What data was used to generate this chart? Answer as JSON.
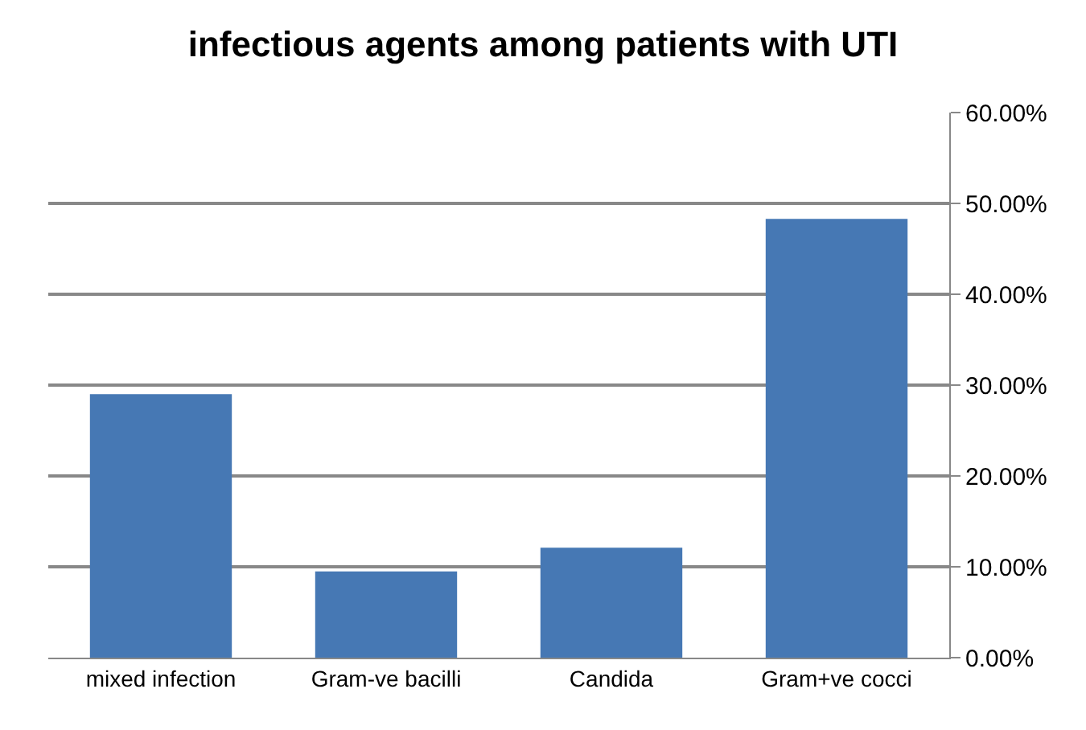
{
  "chart_data": {
    "type": "bar",
    "title": "infectious agents among patients with UTI",
    "categories": [
      "mixed infection",
      "Gram-ve bacilli",
      "Candida",
      "Gram+ve cocci"
    ],
    "values": [
      29.0,
      9.5,
      12.1,
      48.3
    ],
    "color": "#4678b4",
    "ylim": [
      0,
      60
    ],
    "yticks": [
      {
        "value": 0,
        "label": "0.00%"
      },
      {
        "value": 10,
        "label": "10.00%"
      },
      {
        "value": 20,
        "label": "20.00%"
      },
      {
        "value": 30,
        "label": "30.00%"
      },
      {
        "value": 40,
        "label": "40.00%"
      },
      {
        "value": 50,
        "label": "50.00%"
      },
      {
        "value": 60,
        "label": "60.00%"
      }
    ],
    "grid": "y",
    "legend": false
  }
}
